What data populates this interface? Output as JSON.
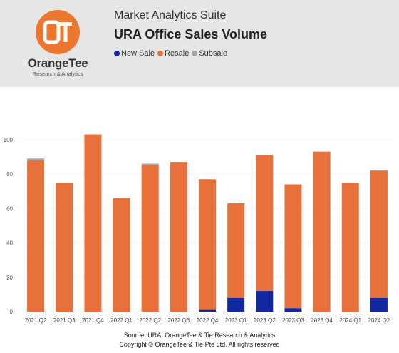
{
  "brand": {
    "logo_glyph": "OT",
    "name": "OrangeTee",
    "tagline": "Research & Analytics",
    "color": "#ee7730"
  },
  "header": {
    "suite": "Market Analytics Suite",
    "title": "URA Office Sales Volume"
  },
  "chart_data": {
    "type": "bar",
    "stacked": true,
    "categories": [
      "2021 Q2",
      "2021 Q3",
      "2021 Q4",
      "2022 Q1",
      "2022 Q2",
      "2022 Q3",
      "2022 Q4",
      "2023 Q1",
      "2023 Q2",
      "2023 Q3",
      "2023 Q4",
      "2024 Q1",
      "2024 Q2"
    ],
    "series": [
      {
        "name": "New Sale",
        "color": "#1228a0",
        "values": [
          0,
          0,
          0,
          0,
          0,
          0,
          1,
          8,
          12,
          2,
          0,
          0,
          8
        ]
      },
      {
        "name": "Resale",
        "color": "#e8703a",
        "values": [
          88,
          75,
          103,
          66,
          85,
          87,
          76,
          55,
          79,
          72,
          93,
          75,
          74
        ]
      },
      {
        "name": "Subsale",
        "color": "#a6a6a6",
        "values": [
          1,
          0,
          0,
          0,
          1,
          0,
          0,
          0,
          0,
          0,
          0,
          0,
          0
        ]
      }
    ],
    "yticks": [
      0,
      20,
      40,
      60,
      80,
      100
    ],
    "ylim": [
      0,
      114
    ],
    "legend_position": "top-left",
    "grid": true
  },
  "footer": {
    "source": "Source: URA, OrangeTee & Tie Research & Analytics",
    "copyright": "Copyright © OrangeTee & Tie Pte Ltd. All rights reserved"
  }
}
